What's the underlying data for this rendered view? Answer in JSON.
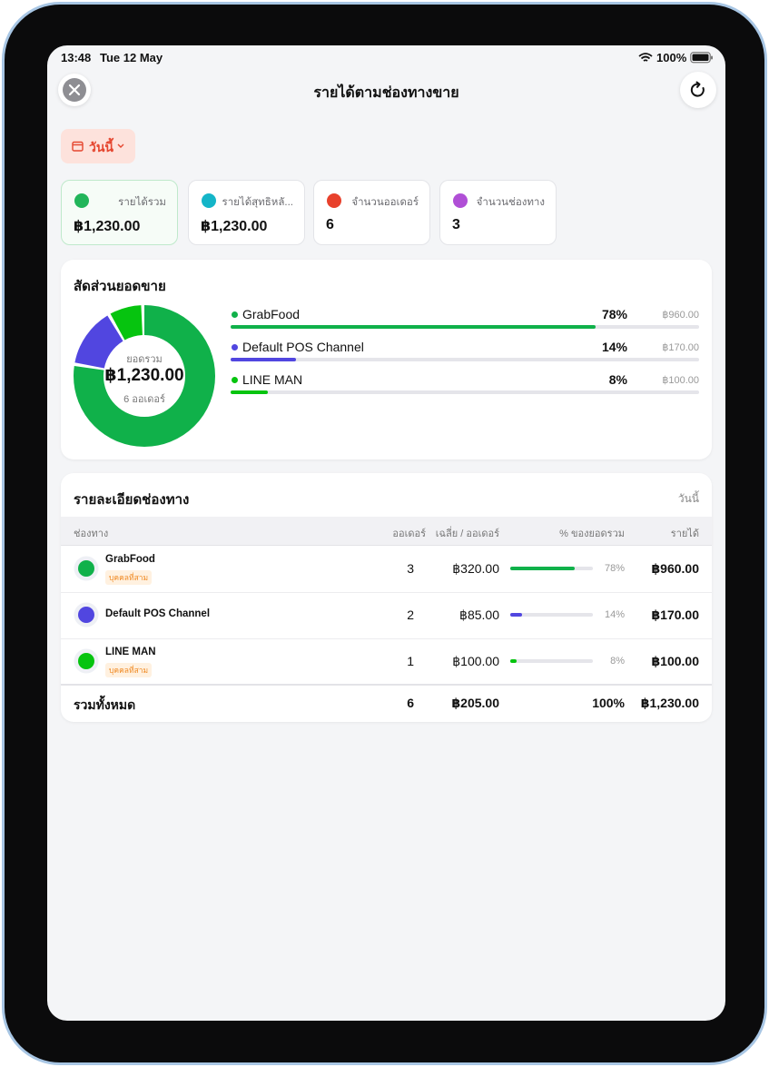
{
  "status_bar": {
    "time": "13:48",
    "date": "Tue 12 May",
    "battery": "100%"
  },
  "header": {
    "title": "รายได้ตามช่องทางขาย"
  },
  "filter": {
    "label": "วันนี้"
  },
  "stats": [
    {
      "label": "รายได้รวม",
      "value": "฿1,230.00",
      "icon_color": "#22b55a"
    },
    {
      "label": "รายได้สุทธิหลั...",
      "value": "฿1,230.00",
      "icon_color": "#14b5c8"
    },
    {
      "label": "จำนวนออเดอร์",
      "value": "6",
      "icon_color": "#e8412c"
    },
    {
      "label": "จำนวนช่องทาง",
      "value": "3",
      "icon_color": "#b04fd6"
    }
  ],
  "share": {
    "title": "สัดส่วนยอดขาย",
    "center_caption": "ยอดรวม",
    "center_value": "฿1,230.00",
    "center_orders": "6 ออเดอร์",
    "channels": [
      {
        "name": "GrabFood",
        "color": "#10b14a",
        "percent": 78,
        "percent_label": "78%",
        "amount": "฿960.00"
      },
      {
        "name": "Default POS Channel",
        "color": "#5146e0",
        "percent": 14,
        "percent_label": "14%",
        "amount": "฿170.00"
      },
      {
        "name": "LINE MAN",
        "color": "#06c40f",
        "percent": 8,
        "percent_label": "8%",
        "amount": "฿100.00"
      }
    ]
  },
  "details": {
    "title": "รายละเอียดช่องทาง",
    "period": "วันนี้",
    "columns": [
      "ช่องทาง",
      "ออเดอร์",
      "เฉลี่ย / ออเดอร์",
      "% ของยอดรวม",
      "รายได้"
    ],
    "rows": [
      {
        "name": "GrabFood",
        "badge": "บุคคลที่สาม",
        "orders": "3",
        "average": "฿320.00",
        "percent": 78,
        "percent_label": "78%",
        "revenue": "฿960.00",
        "color": "#10b14a"
      },
      {
        "name": "Default POS Channel",
        "orders": "2",
        "average": "฿85.00",
        "percent": 14,
        "percent_label": "14%",
        "revenue": "฿170.00",
        "color": "#5146e0"
      },
      {
        "name": "LINE MAN",
        "badge": "บุคคลที่สาม",
        "orders": "1",
        "average": "฿100.00",
        "percent": 8,
        "percent_label": "8%",
        "revenue": "฿100.00",
        "color": "#06c40f"
      }
    ],
    "total": {
      "label": "รวมทั้งหมด",
      "orders": "6",
      "average": "฿205.00",
      "percent_label": "100%",
      "revenue": "฿1,230.00"
    }
  }
}
